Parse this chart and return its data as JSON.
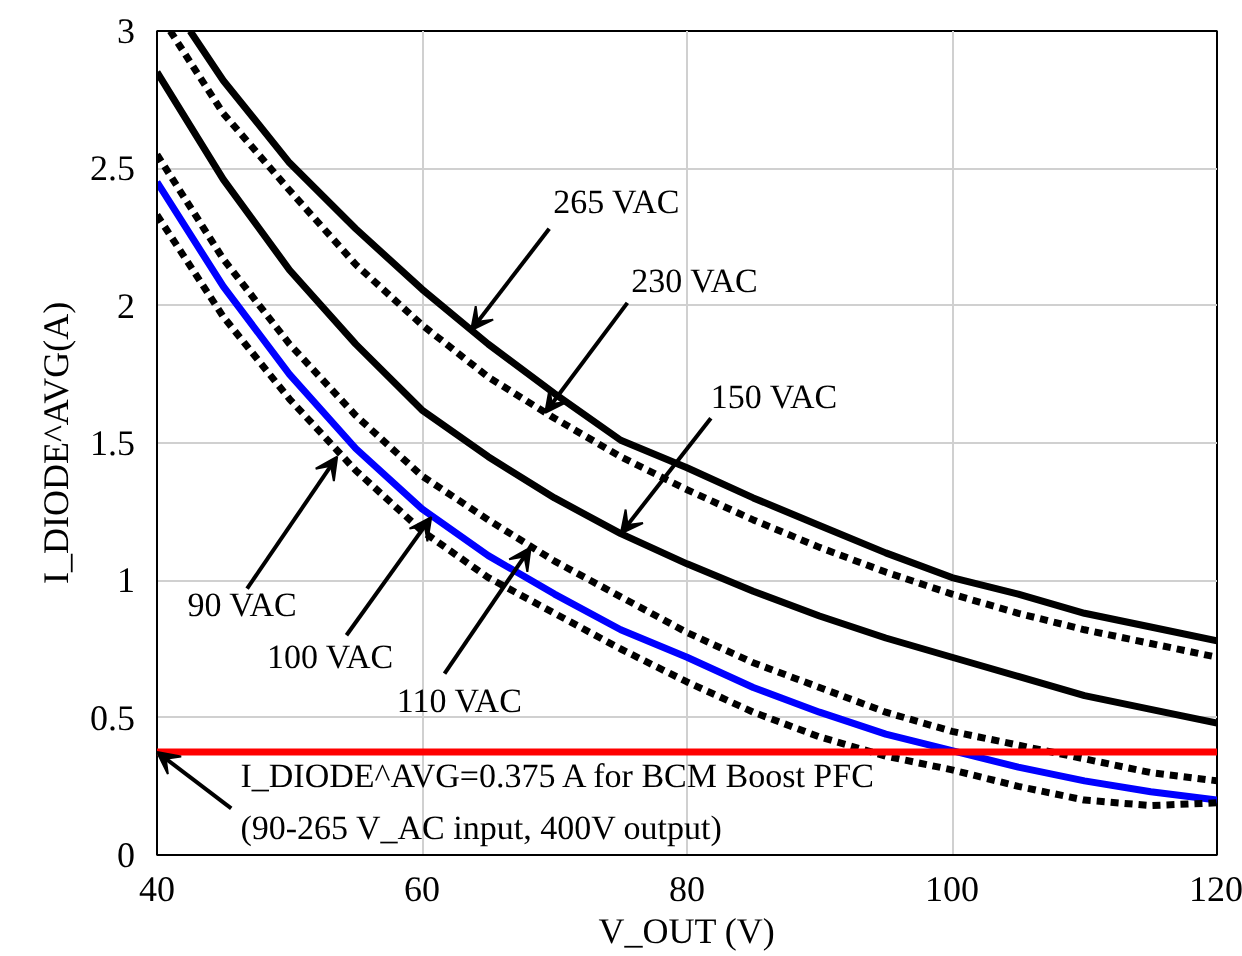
{
  "chart_data": {
    "type": "line",
    "xlabel": "V_OUT (V)",
    "ylabel": "I_DIODE^AVG(A)",
    "xlim": [
      40,
      120
    ],
    "xticks": [
      40,
      60,
      80,
      100,
      120
    ],
    "ylim": [
      0,
      3
    ],
    "yticks": [
      0,
      0.5,
      1,
      1.5,
      2,
      2.5,
      3
    ],
    "grid": true,
    "series": [
      {
        "color": "#000000",
        "line_style": "solid",
        "x": [
          42.5,
          45,
          50,
          55,
          60,
          65,
          70,
          75,
          80,
          85,
          90,
          95,
          100,
          105,
          110,
          115,
          120
        ],
        "values": [
          3.0,
          2.82,
          2.52,
          2.28,
          2.06,
          1.86,
          1.68,
          1.51,
          1.41,
          1.3,
          1.2,
          1.1,
          1.01,
          0.95,
          0.88,
          0.83,
          0.78
        ]
      },
      {
        "color": "#000000",
        "line_style": "dashed",
        "x": [
          41,
          45,
          50,
          55,
          60,
          65,
          70,
          75,
          80,
          85,
          90,
          95,
          100,
          105,
          110,
          115,
          120
        ],
        "values": [
          3.0,
          2.7,
          2.42,
          2.15,
          1.93,
          1.74,
          1.59,
          1.45,
          1.33,
          1.22,
          1.12,
          1.03,
          0.95,
          0.88,
          0.82,
          0.77,
          0.72
        ]
      },
      {
        "color": "#000000",
        "line_style": "solid",
        "x": [
          40,
          45,
          50,
          55,
          60,
          65,
          70,
          75,
          80,
          85,
          90,
          95,
          100,
          105,
          110,
          115,
          120
        ],
        "values": [
          2.85,
          2.46,
          2.13,
          1.86,
          1.62,
          1.45,
          1.3,
          1.17,
          1.06,
          0.96,
          0.87,
          0.79,
          0.72,
          0.65,
          0.58,
          0.53,
          0.48
        ]
      },
      {
        "color": "#000000",
        "line_style": "dashed",
        "x": [
          40,
          45,
          50,
          55,
          60,
          65,
          70,
          75,
          80,
          85,
          90,
          95,
          100,
          105,
          110,
          115,
          120
        ],
        "values": [
          2.55,
          2.17,
          1.86,
          1.6,
          1.38,
          1.22,
          1.07,
          0.94,
          0.81,
          0.7,
          0.61,
          0.52,
          0.45,
          0.4,
          0.35,
          0.3,
          0.27
        ]
      },
      {
        "color": "#0000ff",
        "line_style": "solid",
        "x": [
          40,
          45,
          50,
          55,
          60,
          65,
          70,
          75,
          80,
          85,
          90,
          95,
          100,
          105,
          110,
          115,
          120
        ],
        "values": [
          2.45,
          2.07,
          1.75,
          1.48,
          1.26,
          1.09,
          0.95,
          0.82,
          0.72,
          0.61,
          0.52,
          0.44,
          0.38,
          0.32,
          0.27,
          0.23,
          0.2
        ]
      },
      {
        "color": "#000000",
        "line_style": "dashed",
        "x": [
          40,
          45,
          50,
          55,
          60,
          65,
          70,
          75,
          80,
          85,
          90,
          95,
          100,
          105,
          110,
          115,
          120
        ],
        "values": [
          2.33,
          1.96,
          1.66,
          1.4,
          1.18,
          1.01,
          0.88,
          0.75,
          0.63,
          0.52,
          0.43,
          0.36,
          0.31,
          0.25,
          0.2,
          0.18,
          0.19
        ]
      }
    ],
    "ref_lines": [
      {
        "axis": "y",
        "value": 0.375,
        "color": "#ff0000"
      }
    ],
    "annotations": [
      {
        "text": "265 VAC",
        "x": 63.7,
        "y": 1.91
      },
      {
        "text": "230 VAC",
        "x": 69.3,
        "y": 1.61
      },
      {
        "text": "150 VAC",
        "x": 75,
        "y": 1.17
      },
      {
        "text": "90 VAC",
        "x": 53.6,
        "y": 1.45
      },
      {
        "text": "100 VAC",
        "x": 60.7,
        "y": 1.23
      },
      {
        "text": "110 VAC",
        "x": 68.2,
        "y": 1.12
      },
      {
        "text": "I_DIODE^AVG=0.375 A for BCM Boost PFC",
        "x": 40,
        "y": 0.375
      },
      "(90-265 V_AC input, 400V output)"
    ]
  }
}
